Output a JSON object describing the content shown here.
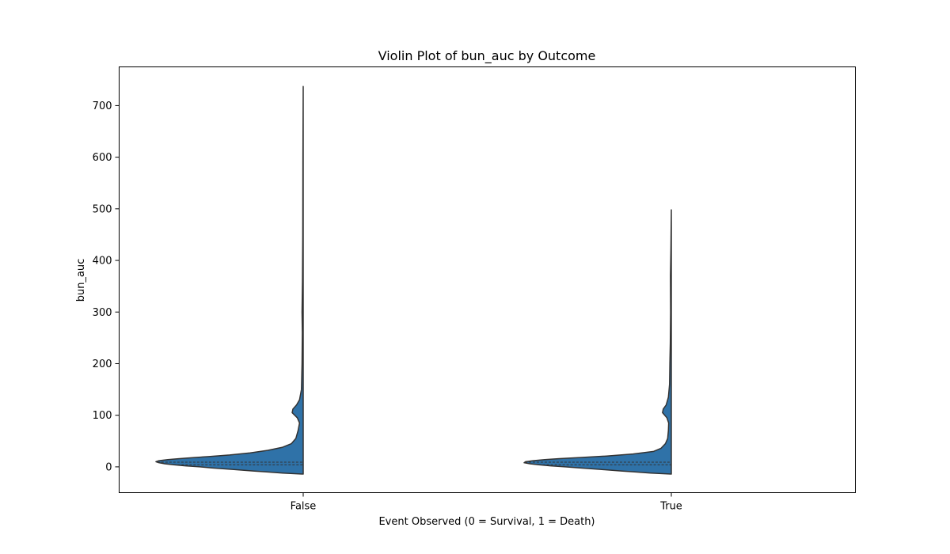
{
  "chart_data": {
    "type": "violin",
    "title": "Violin Plot of bun_auc by Outcome",
    "xlabel": "Event Observed (0 = Survival, 1 = Death)",
    "ylabel": "bun_auc",
    "categories": [
      "False",
      "True"
    ],
    "ylim": [
      -50,
      775
    ],
    "yticks": [
      0,
      100,
      200,
      300,
      400,
      500,
      600,
      700
    ],
    "grid": false,
    "fill_color": "#2f72a8",
    "edge_color": "#333333",
    "violins": [
      {
        "category": "False",
        "min": -14,
        "max": 737,
        "quartile_lines": [
          4,
          9
        ],
        "density": [
          [
            -14,
            0.0
          ],
          [
            -12,
            0.14
          ],
          [
            -10,
            0.24
          ],
          [
            -8,
            0.34
          ],
          [
            -5,
            0.48
          ],
          [
            -2,
            0.62
          ],
          [
            0,
            0.7
          ],
          [
            2,
            0.8
          ],
          [
            4,
            0.88
          ],
          [
            6,
            0.94
          ],
          [
            8,
            0.98
          ],
          [
            10,
            1.0
          ],
          [
            12,
            0.98
          ],
          [
            14,
            0.92
          ],
          [
            16,
            0.84
          ],
          [
            18,
            0.74
          ],
          [
            20,
            0.64
          ],
          [
            23,
            0.5
          ],
          [
            27,
            0.36
          ],
          [
            32,
            0.24
          ],
          [
            38,
            0.14
          ],
          [
            45,
            0.08
          ],
          [
            55,
            0.05
          ],
          [
            70,
            0.035
          ],
          [
            85,
            0.025
          ],
          [
            95,
            0.04
          ],
          [
            105,
            0.075
          ],
          [
            112,
            0.07
          ],
          [
            120,
            0.045
          ],
          [
            130,
            0.025
          ],
          [
            150,
            0.012
          ],
          [
            200,
            0.008
          ],
          [
            260,
            0.006
          ],
          [
            300,
            0.008
          ],
          [
            360,
            0.005
          ],
          [
            450,
            0.003
          ],
          [
            600,
            0.002
          ],
          [
            737,
            0.0
          ]
        ]
      },
      {
        "category": "True",
        "min": -14,
        "max": 498,
        "quartile_lines": [
          4,
          9
        ],
        "density": [
          [
            -14,
            0.0
          ],
          [
            -12,
            0.14
          ],
          [
            -10,
            0.24
          ],
          [
            -8,
            0.34
          ],
          [
            -5,
            0.48
          ],
          [
            -2,
            0.62
          ],
          [
            0,
            0.72
          ],
          [
            2,
            0.82
          ],
          [
            4,
            0.9
          ],
          [
            6,
            0.96
          ],
          [
            8,
            1.0
          ],
          [
            10,
            0.99
          ],
          [
            12,
            0.94
          ],
          [
            14,
            0.86
          ],
          [
            16,
            0.76
          ],
          [
            18,
            0.62
          ],
          [
            21,
            0.44
          ],
          [
            25,
            0.26
          ],
          [
            30,
            0.12
          ],
          [
            36,
            0.07
          ],
          [
            45,
            0.04
          ],
          [
            55,
            0.025
          ],
          [
            70,
            0.02
          ],
          [
            85,
            0.018
          ],
          [
            95,
            0.03
          ],
          [
            105,
            0.06
          ],
          [
            112,
            0.055
          ],
          [
            120,
            0.035
          ],
          [
            135,
            0.02
          ],
          [
            160,
            0.012
          ],
          [
            200,
            0.01
          ],
          [
            240,
            0.007
          ],
          [
            300,
            0.005
          ],
          [
            370,
            0.006
          ],
          [
            420,
            0.003
          ],
          [
            498,
            0.0
          ]
        ]
      }
    ]
  }
}
